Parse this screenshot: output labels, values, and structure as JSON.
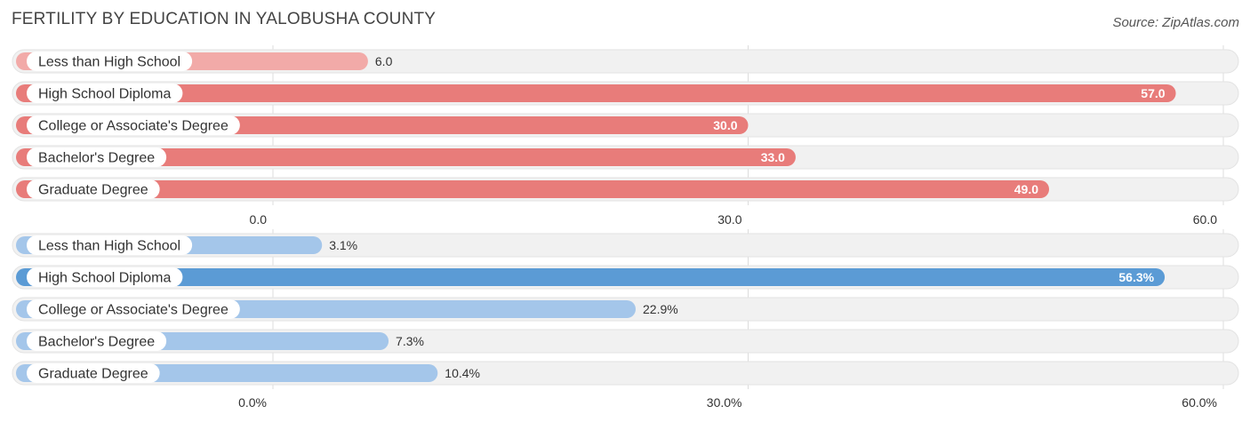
{
  "title": "FERTILITY BY EDUCATION IN YALOBUSHA COUNTY",
  "source": "Source: ZipAtlas.com",
  "chart_data": [
    {
      "type": "bar",
      "orientation": "horizontal",
      "categories": [
        "Less than High School",
        "High School Diploma",
        "College or Associate's Degree",
        "Bachelor's Degree",
        "Graduate Degree"
      ],
      "values": [
        6.0,
        57.0,
        30.0,
        33.0,
        49.0
      ],
      "value_labels": [
        "6.0",
        "57.0",
        "30.0",
        "33.0",
        "49.0"
      ],
      "xlim": [
        0,
        60
      ],
      "ticks": [
        "0.0",
        "30.0",
        "60.0"
      ],
      "grid": true,
      "colors": {
        "bar": "#e87c7a",
        "bar_light": "#f2aaa8",
        "highlight_fraction": 0.5
      }
    },
    {
      "type": "bar",
      "orientation": "horizontal",
      "categories": [
        "Less than High School",
        "High School Diploma",
        "College or Associate's Degree",
        "Bachelor's Degree",
        "Graduate Degree"
      ],
      "values": [
        3.1,
        56.3,
        22.9,
        7.3,
        10.4
      ],
      "value_labels": [
        "3.1%",
        "56.3%",
        "22.9%",
        "7.3%",
        "10.4%"
      ],
      "xlim": [
        0,
        60
      ],
      "ticks": [
        "0.0%",
        "30.0%",
        "60.0%"
      ],
      "grid": true,
      "colors": {
        "bar": "#5b9bd5",
        "bar_light": "#a4c6ea",
        "highlight_fraction": 0.5
      }
    }
  ]
}
